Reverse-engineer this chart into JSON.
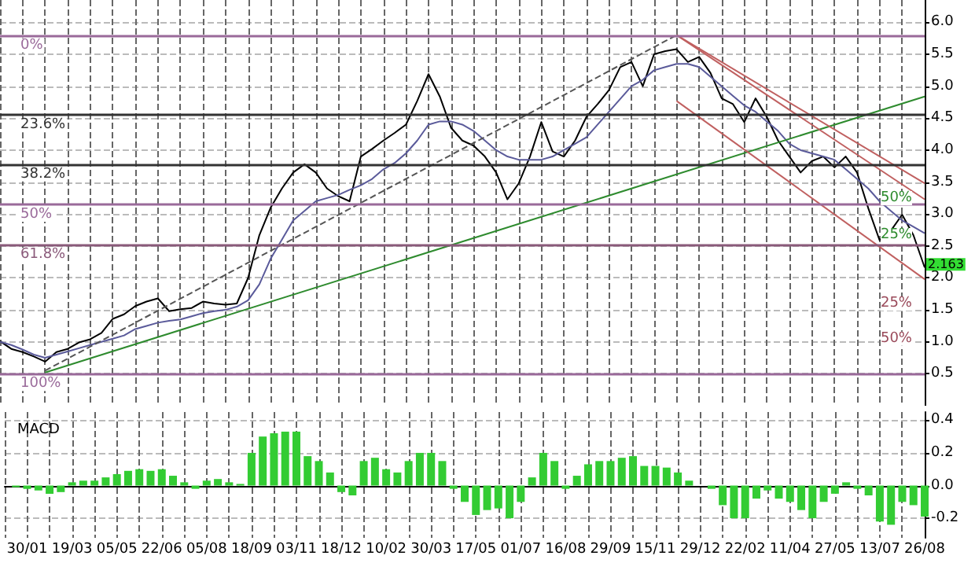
{
  "chart_data": [
    {
      "type": "line",
      "categories": [
        null,
        null,
        "30/01",
        null,
        null,
        null,
        "19/03",
        null,
        null,
        null,
        "05/05",
        null,
        null,
        null,
        "22/06",
        null,
        null,
        null,
        "05/08",
        null,
        null,
        null,
        "18/09",
        null,
        null,
        null,
        "03/11",
        null,
        null,
        null,
        "18/12",
        null,
        null,
        null,
        "10/02",
        null,
        null,
        null,
        "30/03",
        null,
        null,
        null,
        "17/05",
        null,
        null,
        null,
        "01/07",
        null,
        null,
        null,
        "16/08",
        null,
        null,
        null,
        "29/09",
        null,
        null,
        null,
        "15/11",
        null,
        null,
        null,
        "29/12",
        null,
        null,
        null,
        "22/02",
        null,
        null,
        null,
        "11/04",
        null,
        null,
        null,
        "27/05",
        null,
        null,
        null,
        "13/07",
        null,
        null,
        null,
        "26/08"
      ],
      "series": [
        {
          "color": "#000000",
          "values": [
            1.01,
            0.89,
            0.84,
            0.77,
            0.69,
            0.84,
            0.89,
            0.99,
            1.04,
            1.14,
            1.36,
            1.43,
            1.56,
            1.63,
            1.68,
            1.48,
            1.51,
            1.53,
            1.63,
            1.6,
            1.58,
            1.6,
            2.0,
            2.67,
            3.1,
            3.4,
            3.65,
            3.78,
            3.65,
            3.4,
            3.28,
            3.2,
            3.9,
            4.02,
            4.15,
            4.27,
            4.4,
            4.77,
            5.19,
            4.84,
            4.35,
            4.15,
            4.07,
            3.9,
            3.65,
            3.23,
            3.48,
            3.9,
            4.44,
            3.98,
            3.9,
            4.15,
            4.52,
            4.72,
            4.94,
            5.3,
            5.38,
            5.0,
            5.5,
            5.55,
            5.58,
            5.38,
            5.46,
            5.21,
            4.81,
            4.72,
            4.44,
            4.81,
            4.52,
            4.15,
            3.9,
            3.65,
            3.83,
            3.9,
            3.73,
            3.9,
            3.65,
            3.09,
            2.59,
            2.74,
            2.99,
            2.67,
            2.163
          ]
        },
        {
          "color": "#5a5a9a",
          "values": [
            1.0,
            0.95,
            0.88,
            0.8,
            0.75,
            0.8,
            0.85,
            0.9,
            0.95,
            1.0,
            1.05,
            1.1,
            1.2,
            1.25,
            1.3,
            1.33,
            1.35,
            1.4,
            1.45,
            1.48,
            1.5,
            1.55,
            1.65,
            1.9,
            2.3,
            2.6,
            2.9,
            3.05,
            3.2,
            3.25,
            3.3,
            3.38,
            3.45,
            3.55,
            3.7,
            3.8,
            3.95,
            4.15,
            4.4,
            4.45,
            4.45,
            4.4,
            4.3,
            4.15,
            4.0,
            3.9,
            3.85,
            3.85,
            3.85,
            3.9,
            4.0,
            4.1,
            4.2,
            4.4,
            4.6,
            4.8,
            5.0,
            5.1,
            5.25,
            5.3,
            5.35,
            5.35,
            5.3,
            5.15,
            5.0,
            4.85,
            4.7,
            4.6,
            4.45,
            4.3,
            4.1,
            4.0,
            3.95,
            3.9,
            3.85,
            3.7,
            3.55,
            3.4,
            3.2,
            3.05,
            2.9,
            2.8,
            2.7
          ]
        },
        {
          "color": "#2e8b2e",
          "values": [
            null,
            null,
            null,
            null,
            0.52,
            null,
            null,
            null,
            null,
            null,
            null,
            null,
            null,
            null,
            null,
            null,
            null,
            null,
            null,
            null,
            null,
            null,
            null,
            null,
            null,
            null,
            null,
            null,
            null,
            null,
            null,
            null,
            null,
            null,
            null,
            null,
            null,
            null,
            null,
            null,
            null,
            null,
            null,
            null,
            null,
            null,
            null,
            null,
            null,
            null,
            null,
            null,
            null,
            null,
            null,
            null,
            null,
            null,
            null,
            null,
            null,
            null,
            null,
            null,
            null,
            null,
            null,
            null,
            null,
            null,
            null,
            null,
            null,
            null,
            null,
            null,
            null,
            null,
            null,
            null,
            null,
            null,
            4.84
          ]
        },
        {
          "color": "#555555",
          "line_style": "dashed",
          "values": [
            null,
            null,
            null,
            null,
            0.55,
            null,
            null,
            null,
            null,
            null,
            null,
            null,
            null,
            null,
            null,
            null,
            null,
            null,
            null,
            null,
            null,
            null,
            null,
            null,
            null,
            null,
            null,
            null,
            null,
            null,
            null,
            null,
            null,
            null,
            null,
            null,
            null,
            null,
            null,
            null,
            null,
            null,
            null,
            null,
            null,
            null,
            null,
            null,
            null,
            null,
            null,
            null,
            null,
            null,
            null,
            null,
            null,
            null,
            null,
            null,
            5.8,
            null,
            null,
            null,
            null,
            null,
            null,
            null,
            null,
            null,
            null,
            null,
            null,
            null,
            null,
            null,
            null,
            null,
            null,
            null,
            null,
            null,
            null
          ]
        },
        {
          "color": "#c06060",
          "values": [
            null,
            null,
            null,
            null,
            null,
            null,
            null,
            null,
            null,
            null,
            null,
            null,
            null,
            null,
            null,
            null,
            null,
            null,
            null,
            null,
            null,
            null,
            null,
            null,
            null,
            null,
            null,
            null,
            null,
            null,
            null,
            null,
            null,
            null,
            null,
            null,
            null,
            null,
            null,
            null,
            null,
            null,
            null,
            null,
            null,
            null,
            null,
            null,
            null,
            null,
            null,
            null,
            null,
            null,
            null,
            null,
            null,
            null,
            null,
            null,
            5.8,
            null,
            null,
            null,
            null,
            null,
            null,
            null,
            null,
            null,
            null,
            null,
            null,
            null,
            null,
            null,
            null,
            null,
            null,
            null,
            null,
            null,
            3.48
          ]
        },
        {
          "color": "#c06060",
          "values": [
            null,
            null,
            null,
            null,
            null,
            null,
            null,
            null,
            null,
            null,
            null,
            null,
            null,
            null,
            null,
            null,
            null,
            null,
            null,
            null,
            null,
            null,
            null,
            null,
            null,
            null,
            null,
            null,
            null,
            null,
            null,
            null,
            null,
            null,
            null,
            null,
            null,
            null,
            null,
            null,
            null,
            null,
            null,
            null,
            null,
            null,
            null,
            null,
            null,
            null,
            null,
            null,
            null,
            null,
            null,
            null,
            null,
            null,
            null,
            null,
            5.8,
            null,
            null,
            null,
            null,
            null,
            null,
            null,
            null,
            null,
            null,
            null,
            null,
            null,
            null,
            null,
            null,
            null,
            null,
            null,
            null,
            null,
            3.23
          ]
        },
        {
          "color": "#c06060",
          "values": [
            null,
            null,
            null,
            null,
            null,
            null,
            null,
            null,
            null,
            null,
            null,
            null,
            null,
            null,
            null,
            null,
            null,
            null,
            null,
            null,
            null,
            null,
            null,
            null,
            null,
            null,
            null,
            null,
            null,
            null,
            null,
            null,
            null,
            null,
            null,
            null,
            null,
            null,
            null,
            null,
            null,
            null,
            null,
            null,
            null,
            null,
            null,
            null,
            null,
            null,
            null,
            null,
            null,
            null,
            null,
            null,
            null,
            null,
            null,
            null,
            4.77,
            null,
            null,
            null,
            null,
            null,
            null,
            null,
            null,
            null,
            null,
            null,
            null,
            null,
            null,
            null,
            null,
            null,
            null,
            null,
            null,
            null,
            1.98
          ]
        }
      ],
      "ylim": [
        0,
        6.35
      ],
      "yticks": [
        {
          "value": 0.5,
          "label": "0.5"
        },
        {
          "value": 1,
          "label": "1.0"
        },
        {
          "value": 1.5,
          "label": "1.5"
        },
        {
          "value": 2,
          "label": "2.0"
        },
        {
          "value": 2.5,
          "label": "2.5"
        },
        {
          "value": 3,
          "label": "3.0"
        },
        {
          "value": 3.5,
          "label": "3.5"
        },
        {
          "value": 4,
          "label": "4.0"
        },
        {
          "value": 4.5,
          "label": "4.5"
        },
        {
          "value": 5,
          "label": "5.0"
        },
        {
          "value": 5.5,
          "label": "5.5"
        },
        {
          "value": 6,
          "label": "6.0"
        }
      ],
      "ref_lines": [
        {
          "axis": "y",
          "value": 5.8,
          "color": "#9a6a9a"
        },
        {
          "axis": "y",
          "value": 4.55,
          "color": "#333333"
        },
        {
          "axis": "y",
          "value": 3.78,
          "color": "#333333"
        },
        {
          "axis": "y",
          "value": 3.15,
          "color": "#9a6a9a"
        },
        {
          "axis": "y",
          "value": 2.52,
          "color": "#8a5a7a"
        },
        {
          "axis": "y",
          "value": 0.5,
          "color": "#9a6a9a"
        }
      ],
      "annotations": [
        {
          "text": "0%",
          "y": 5.8
        },
        {
          "text": "23.6%",
          "y": 4.55
        },
        {
          "text": "38.2%",
          "y": 3.78
        },
        {
          "text": "50%",
          "y": 3.15
        },
        {
          "text": "61.8%",
          "y": 2.52
        },
        {
          "text": "100%",
          "y": 0.5
        },
        {
          "text": "50%",
          "y": 3.25
        },
        {
          "text": "25%",
          "y": 2.67
        },
        {
          "text": "25%",
          "y": 1.6
        },
        {
          "text": "50%",
          "y": 1.05
        },
        {
          "text": "2.163",
          "x": "26/08",
          "y": 2.163
        }
      ],
      "grid": true,
      "tick_labels": "y"
    },
    {
      "type": "bar",
      "title": "MACD",
      "categories": [
        null,
        null,
        "30/01",
        null,
        null,
        null,
        "19/03",
        null,
        null,
        null,
        "05/05",
        null,
        null,
        null,
        "22/06",
        null,
        null,
        null,
        "05/08",
        null,
        null,
        null,
        "18/09",
        null,
        null,
        null,
        "03/11",
        null,
        null,
        null,
        "18/12",
        null,
        null,
        null,
        "10/02",
        null,
        null,
        null,
        "30/03",
        null,
        null,
        null,
        "17/05",
        null,
        null,
        null,
        "01/07",
        null,
        null,
        null,
        "16/08",
        null,
        null,
        null,
        "29/09",
        null,
        null,
        null,
        "15/11",
        null,
        null,
        null,
        "29/12",
        null,
        null,
        null,
        "22/02",
        null,
        null,
        null,
        "11/04",
        null,
        null,
        null,
        "27/05",
        null,
        null,
        null,
        "13/07",
        null,
        null,
        null,
        "26/08"
      ],
      "series": [
        {
          "color": "#33cc33",
          "values": [
            0.0,
            -0.01,
            -0.02,
            -0.03,
            -0.05,
            -0.04,
            0.02,
            0.03,
            0.03,
            0.05,
            0.07,
            0.09,
            0.1,
            0.09,
            0.1,
            0.06,
            0.02,
            -0.02,
            0.03,
            0.04,
            0.02,
            0.01,
            0.2,
            0.3,
            0.32,
            0.33,
            0.33,
            0.18,
            0.15,
            0.08,
            -0.04,
            -0.06,
            0.15,
            0.17,
            0.1,
            0.08,
            0.15,
            0.2,
            0.2,
            0.15,
            -0.02,
            -0.1,
            -0.18,
            -0.15,
            -0.14,
            -0.2,
            -0.1,
            0.05,
            0.2,
            0.15,
            -0.02,
            0.06,
            0.13,
            0.15,
            0.15,
            0.17,
            0.18,
            0.12,
            0.12,
            0.11,
            0.08,
            0.03,
            0.0,
            -0.02,
            -0.12,
            -0.2,
            -0.2,
            -0.08,
            -0.03,
            -0.08,
            -0.1,
            -0.15,
            -0.2,
            -0.1,
            -0.05,
            0.02,
            -0.02,
            -0.06,
            -0.22,
            -0.24,
            -0.1,
            -0.12,
            -0.19
          ]
        }
      ],
      "ylim": [
        -0.32,
        0.45
      ],
      "yticks": [
        {
          "value": -0.2,
          "label": "-0.2"
        },
        {
          "value": 0,
          "label": "0.0"
        },
        {
          "value": 0.2,
          "label": "0.2"
        },
        {
          "value": 0.4,
          "label": "0.4"
        }
      ],
      "grid": true
    }
  ]
}
